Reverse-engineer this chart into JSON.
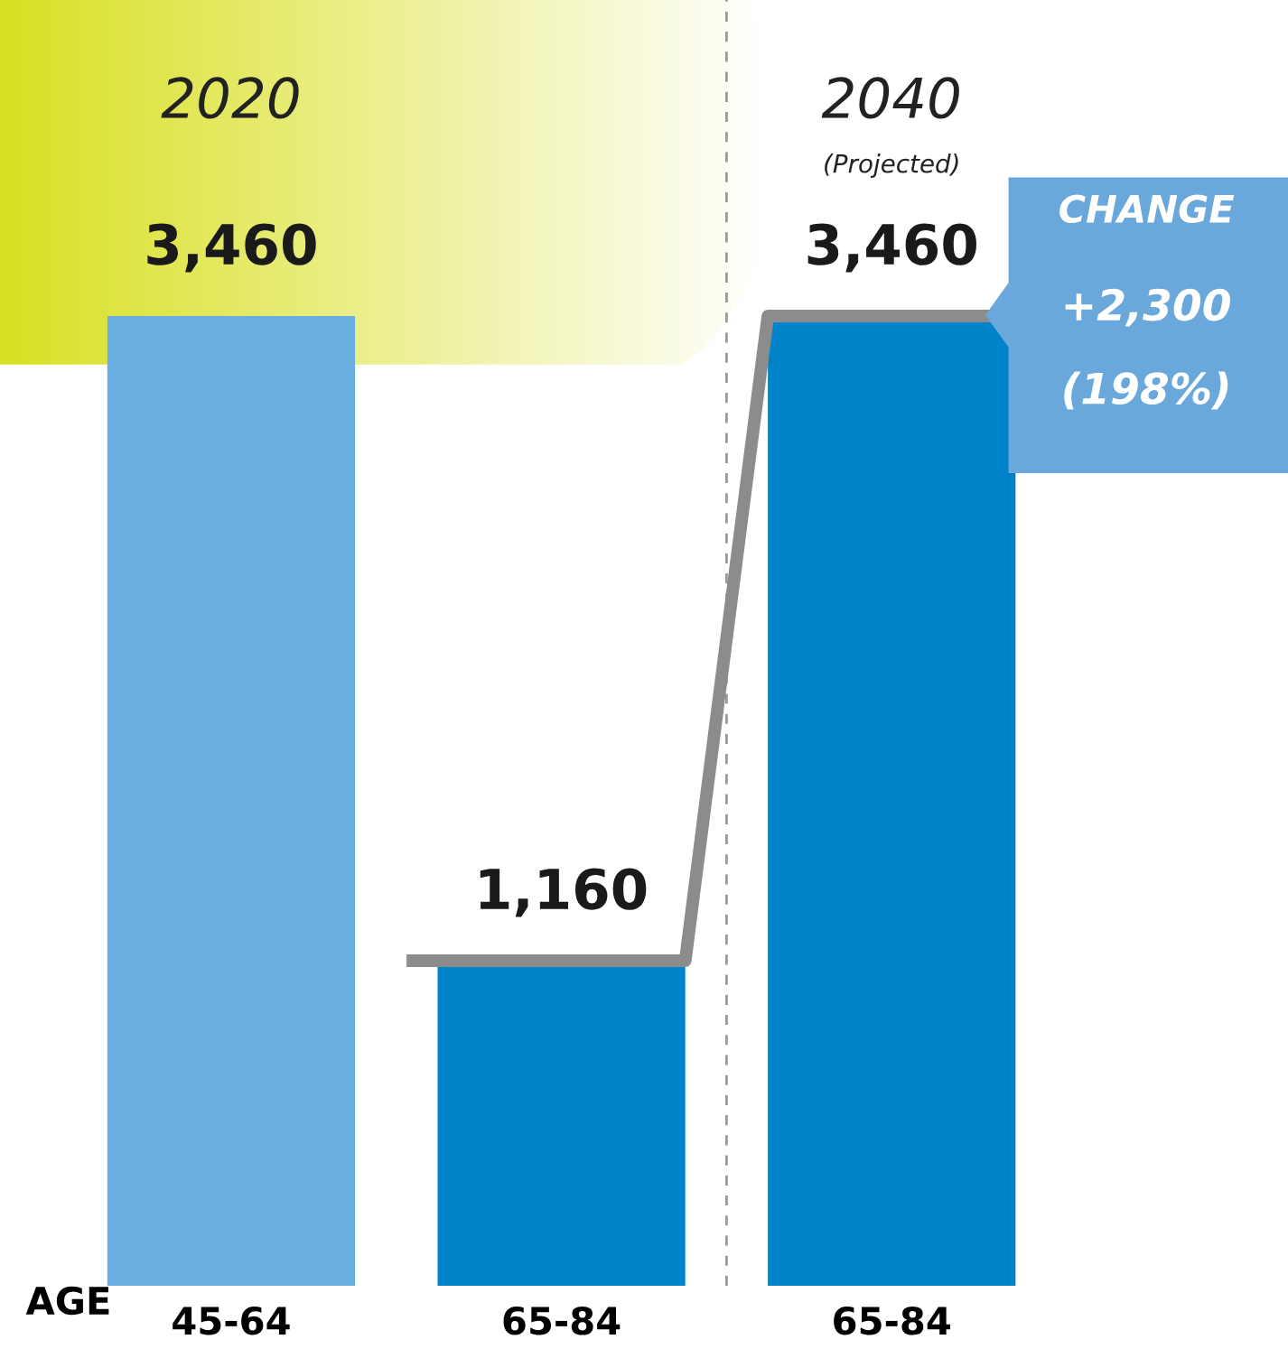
{
  "chart_data": {
    "type": "bar",
    "categories": [
      "45-64",
      "65-84",
      "65-84"
    ],
    "xlabel": "AGE",
    "series": [
      {
        "colors": [
          "#6aade0",
          "#0083c9",
          "#0083c9"
        ],
        "values": [
          3460,
          1160,
          3460
        ],
        "value_labels": [
          "3,460",
          "1,160",
          "3,460"
        ]
      }
    ],
    "annotations": [
      "2020",
      "2040",
      "(Projected)",
      "CHANGE",
      "+2,300",
      "(198%)"
    ],
    "grid": false,
    "legend": false
  }
}
